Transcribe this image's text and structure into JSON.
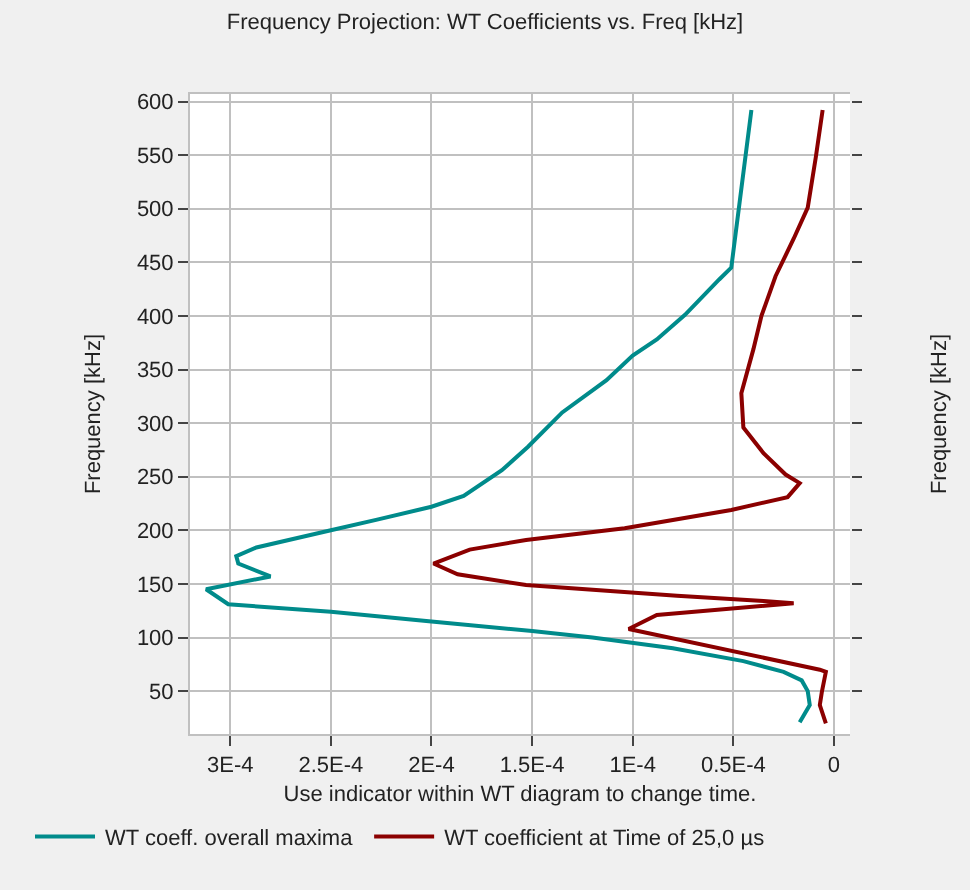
{
  "chart_data": {
    "type": "line",
    "title": "Frequency Projection: WT Coefficients vs. Freq [kHz]",
    "xlabel": "Use indicator within WT diagram to change time.",
    "ylabel": "Frequency [kHz]",
    "y2label": "Frequency [kHz]",
    "xlim": [
      0.00032,
      -8e-06
    ],
    "ylim": [
      10,
      607
    ],
    "xticks": [
      {
        "value": 0.0003,
        "label": "3E-4"
      },
      {
        "value": 0.00025,
        "label": "2.5E-4"
      },
      {
        "value": 0.0002,
        "label": "2E-4"
      },
      {
        "value": 0.00015,
        "label": "1.5E-4"
      },
      {
        "value": 0.0001,
        "label": "1E-4"
      },
      {
        "value": 5e-05,
        "label": "0.5E-4"
      },
      0
    ],
    "yticks": [
      50,
      100,
      150,
      200,
      250,
      300,
      350,
      400,
      450,
      500,
      550,
      600
    ],
    "grid": true,
    "legend": "bottom",
    "line_style": "solid",
    "marker": "none",
    "series": [
      {
        "name": "WT coeff. overall maxima",
        "color": "#008b8b",
        "x": [
          4.1e-05,
          5.1e-05,
          5.7e-05,
          7.4e-05,
          8.8e-05,
          0.0001,
          0.000113,
          0.000135,
          0.000152,
          0.000165,
          0.000184,
          0.0002,
          0.000227,
          0.00025,
          0.000287,
          0.000297,
          0.000296,
          0.00028,
          0.000312,
          0.000301,
          0.00025,
          0.0002,
          0.00015,
          0.00012,
          8e-05,
          4.5e-05,
          2.5e-05,
          1.6e-05,
          1.3e-05,
          1.2e-05,
          1.7e-05
        ],
        "values": [
          592,
          445,
          434,
          401,
          378,
          363,
          340,
          310,
          278,
          256,
          232,
          222,
          210,
          200,
          184,
          176,
          169,
          157,
          145,
          131,
          124,
          115,
          106,
          100,
          90,
          78,
          68,
          60,
          50,
          37,
          21
        ]
      },
      {
        "name": "WT coefficient at Time of 25,0 µs",
        "color": "#8b0000",
        "x": [
          5.6e-06,
          9e-06,
          1.3e-05,
          2e-05,
          2.9e-05,
          3.6e-05,
          4e-05,
          4.6e-05,
          4.5e-05,
          3.5e-05,
          2.4e-05,
          1.7e-05,
          2.3e-05,
          5.1e-05,
          0.000104,
          0.000153,
          0.000181,
          0.000199,
          0.000187,
          0.000153,
          7.8e-05,
          3.5e-05,
          2e-05,
          8.8e-05,
          0.000102,
          7e-06,
          4e-06,
          6e-06,
          7e-06,
          4e-06
        ],
        "values": [
          592,
          548,
          501,
          472,
          437,
          400,
          369,
          328,
          296,
          272,
          252,
          244,
          231,
          219,
          202,
          191,
          182,
          169,
          159,
          149,
          139,
          134,
          132,
          121,
          108,
          70,
          68,
          49,
          37,
          20
        ]
      }
    ]
  }
}
